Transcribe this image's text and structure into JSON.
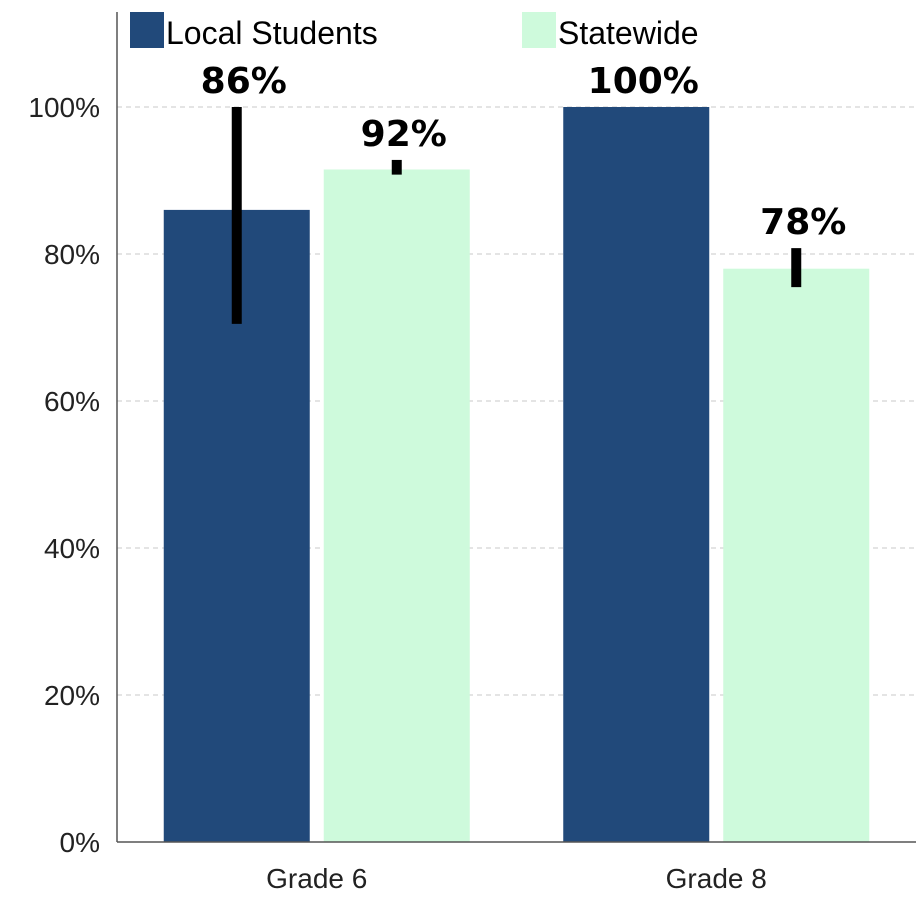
{
  "chart_data": {
    "type": "bar",
    "categories": [
      "Grade 6",
      "Grade 8"
    ],
    "series": [
      {
        "name": "Local Students",
        "color": "#21497a",
        "values": [
          86,
          100
        ],
        "labels": [
          "86%",
          "100%"
        ],
        "error_low": [
          70.5,
          100
        ],
        "error_high": [
          100,
          100
        ]
      },
      {
        "name": "Statewide",
        "color": "#cefadc",
        "values": [
          91.5,
          78
        ],
        "labels": [
          "92%",
          "78%"
        ],
        "error_low": [
          90.8,
          75.5
        ],
        "error_high": [
          92.8,
          80.8
        ]
      }
    ],
    "ylim": [
      0,
      100
    ],
    "yticks": [
      0,
      20,
      40,
      60,
      80,
      100
    ],
    "ytick_labels": [
      "0%",
      "20%",
      "40%",
      "60%",
      "80%",
      "100%"
    ],
    "grid": true,
    "legend_position": "top",
    "error_bar_color": "#000000"
  }
}
